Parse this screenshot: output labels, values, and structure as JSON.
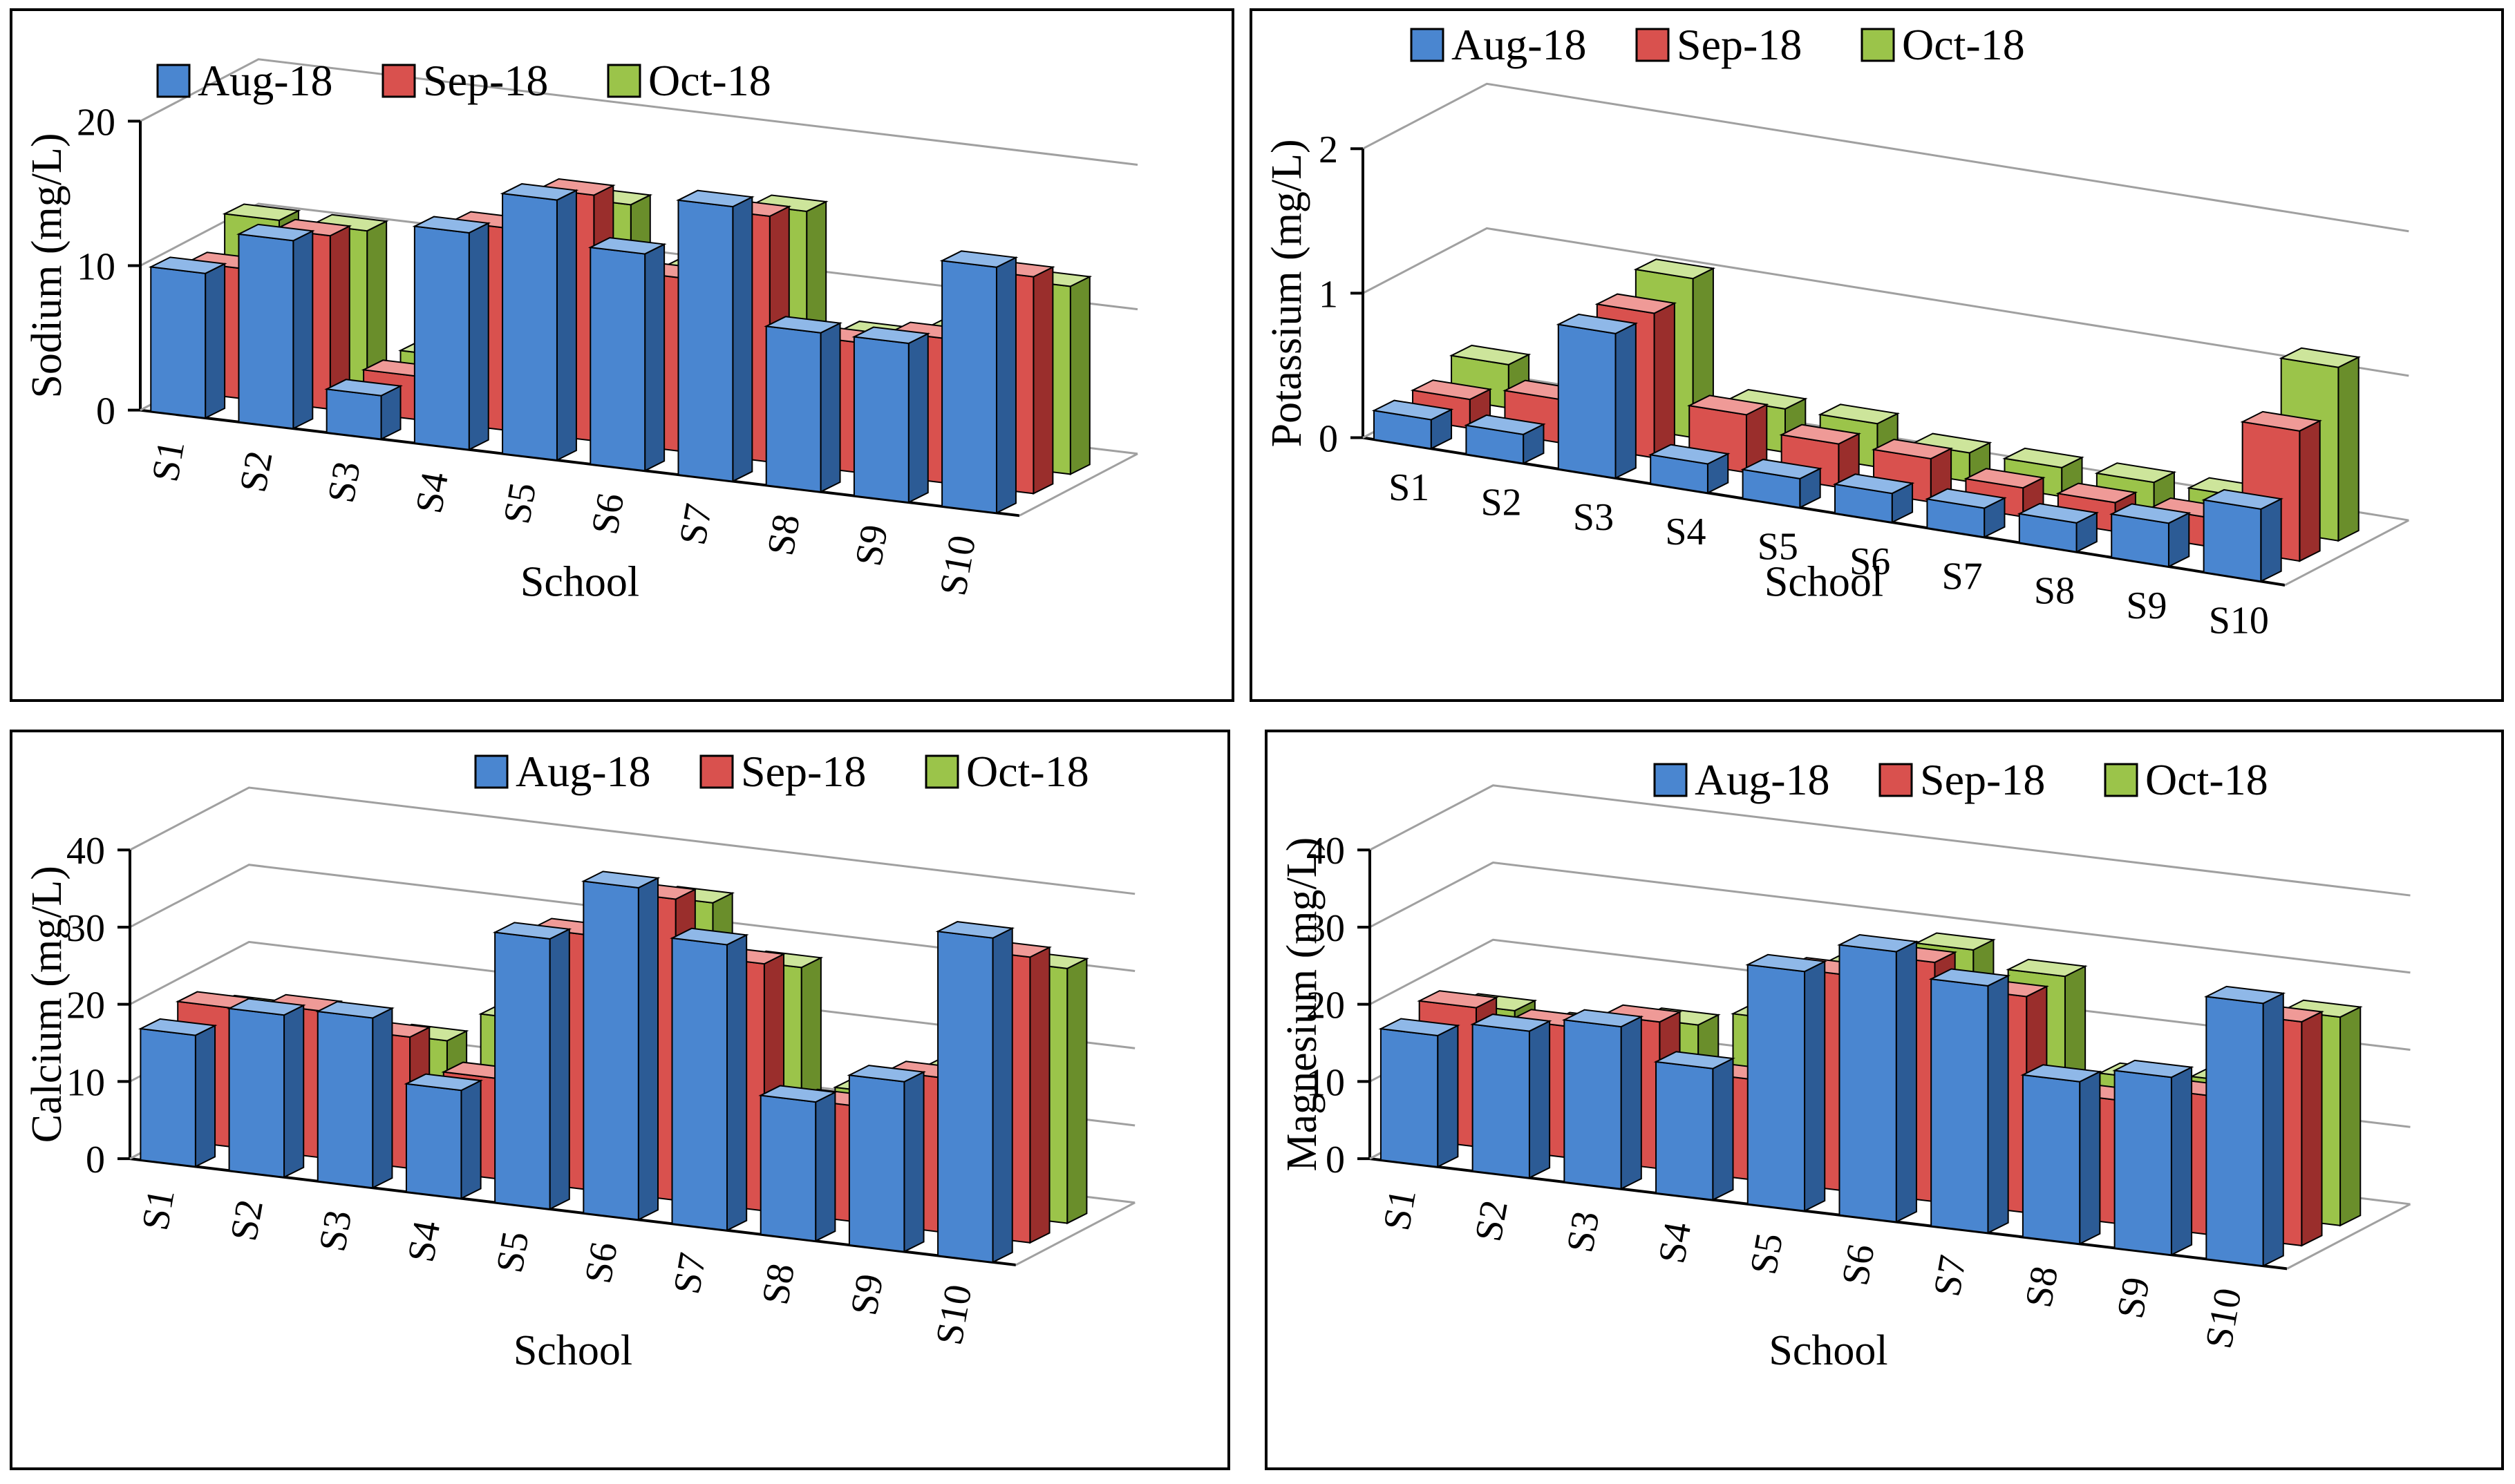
{
  "legend_colors": {
    "Aug-18": {
      "front": "#4a86d0",
      "side": "#2c5b95",
      "top": "#8fb8e8"
    },
    "Sep-18": {
      "front": "#d9514e",
      "side": "#9a2e2c",
      "top": "#ef9a97"
    },
    "Oct-18": {
      "front": "#9bc44a",
      "side": "#6a8e2b",
      "top": "#cde59b"
    }
  },
  "chart_data": [
    {
      "type": "bar",
      "ylabel": "Sodium (mg/L)",
      "xlabel": "School",
      "categories": [
        "S1",
        "S2",
        "S3",
        "S4",
        "S5",
        "S6",
        "S7",
        "S8",
        "S9",
        "S10"
      ],
      "ylim": [
        0,
        20
      ],
      "yticks": [
        0,
        10,
        20
      ],
      "legend": [
        "Aug-18",
        "Sep-18",
        "Oct-18"
      ],
      "series": [
        {
          "name": "Aug-18",
          "values": [
            10,
            13,
            3,
            15,
            18,
            15,
            19,
            11,
            11,
            17
          ]
        },
        {
          "name": "Sep-18",
          "values": [
            9,
            12,
            3,
            14,
            17,
            12,
            17,
            9,
            10,
            15
          ]
        },
        {
          "name": "Oct-18",
          "values": [
            11,
            11,
            3,
            12,
            15,
            11,
            16,
            8,
            9,
            13
          ]
        }
      ]
    },
    {
      "type": "bar",
      "ylabel": "Potassium (mg/L)",
      "xlabel": "School",
      "categories": [
        "S1",
        "S2",
        "S3",
        "S4",
        "S5",
        "S6",
        "S7",
        "S8",
        "S9",
        "S10"
      ],
      "ylim": [
        0,
        2
      ],
      "yticks": [
        0,
        1,
        2
      ],
      "legend": [
        "Aug-18",
        "Sep-18",
        "Oct-18"
      ],
      "series": [
        {
          "name": "Aug-18",
          "values": [
            0.2,
            0.2,
            1.0,
            0.2,
            0.2,
            0.2,
            0.2,
            0.2,
            0.3,
            0.5
          ]
        },
        {
          "name": "Sep-18",
          "values": [
            0.2,
            0.3,
            1.0,
            0.4,
            0.3,
            0.3,
            0.2,
            0.2,
            0.2,
            0.9
          ]
        },
        {
          "name": "Oct-18",
          "values": [
            0.3,
            0.1,
            1.1,
            0.3,
            0.3,
            0.2,
            0.2,
            0.2,
            0.2,
            1.2
          ]
        }
      ]
    },
    {
      "type": "bar",
      "ylabel": "Calcium (mg/L)",
      "xlabel": "School",
      "categories": [
        "S1",
        "S2",
        "S3",
        "S4",
        "S5",
        "S6",
        "S7",
        "S8",
        "S9",
        "S10"
      ],
      "ylim": [
        0,
        40
      ],
      "yticks": [
        0,
        10,
        20,
        30,
        40
      ],
      "legend": [
        "Aug-18",
        "Sep-18",
        "Oct-18"
      ],
      "series": [
        {
          "name": "Aug-18",
          "values": [
            17,
            21,
            22,
            14,
            35,
            43,
            37,
            18,
            22,
            42
          ]
        },
        {
          "name": "Sep-18",
          "values": [
            18,
            19,
            17,
            13,
            33,
            39,
            32,
            15,
            20,
            37
          ]
        },
        {
          "name": "Oct-18",
          "values": [
            15,
            15,
            14,
            18,
            28,
            36,
            29,
            14,
            18,
            33
          ]
        }
      ]
    },
    {
      "type": "bar",
      "ylabel": "Magnesium (mg/L)",
      "xlabel": "School",
      "categories": [
        "S1",
        "S2",
        "S3",
        "S4",
        "S5",
        "S6",
        "S7",
        "S8",
        "S9",
        "S10"
      ],
      "ylim": [
        0,
        40
      ],
      "yticks": [
        0,
        10,
        20,
        30,
        40
      ],
      "legend": [
        "Aug-18",
        "Sep-18",
        "Oct-18"
      ],
      "series": [
        {
          "name": "Aug-18",
          "values": [
            17,
            19,
            21,
            17,
            31,
            35,
            32,
            21,
            23,
            34
          ]
        },
        {
          "name": "Sep-18",
          "values": [
            18,
            17,
            19,
            13,
            28,
            31,
            28,
            16,
            18,
            29
          ]
        },
        {
          "name": "Oct-18",
          "values": [
            15,
            14,
            16,
            18,
            26,
            30,
            28,
            16,
            17,
            27
          ]
        }
      ]
    }
  ]
}
